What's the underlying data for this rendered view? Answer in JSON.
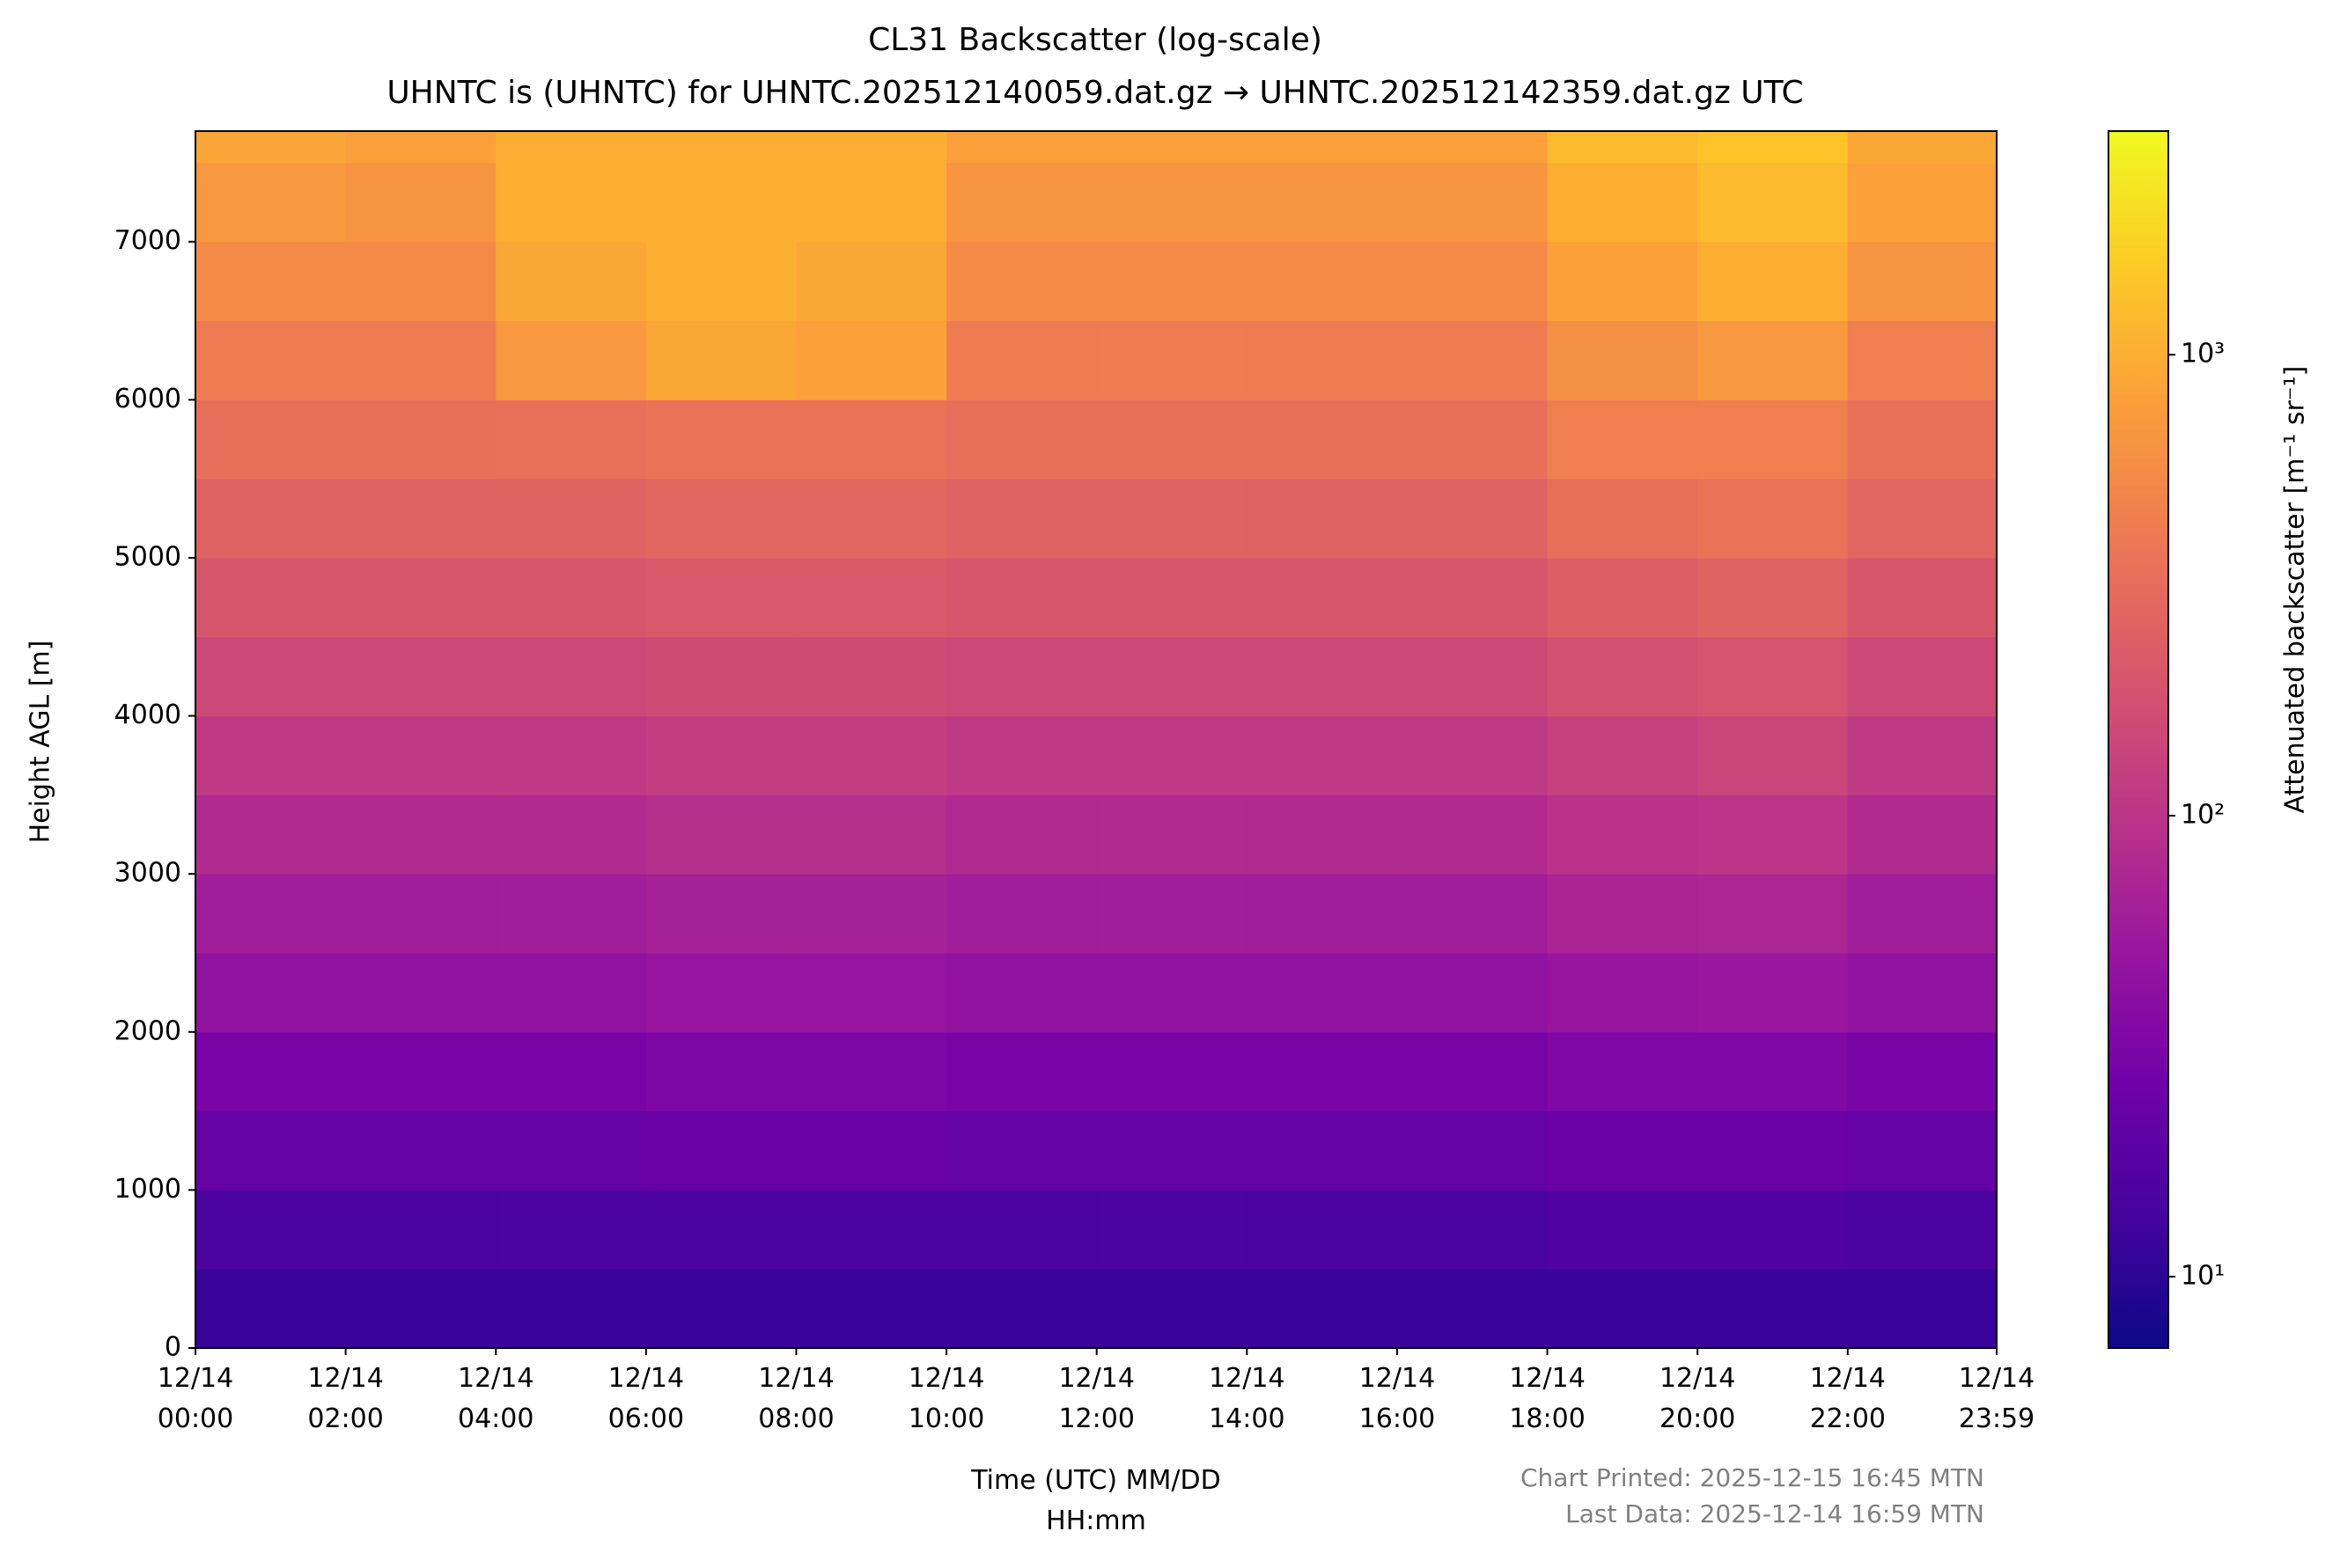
{
  "chart_data": {
    "type": "heatmap",
    "title": "CL31 Backscatter (log-scale)",
    "subtitle": "UHNTC is (UHNTC) for UHNTC.202512140059.dat.gz → UHNTC.202512142359.dat.gz UTC",
    "x_label": "Time (UTC) MM/DD\nHH:mm",
    "y_label": "Height AGL [m]",
    "colorbar_label": "Attenuated backscatter [m⁻¹ sr⁻¹]",
    "colormap": "plasma",
    "footnotes": [
      "Chart Printed: 2025-12-15 16:45 MTN",
      "Last Data: 2025-12-14 16:59 MTN"
    ],
    "xlim": [
      0,
      23.9833
    ],
    "xticks": [
      {
        "value": 0,
        "label": "12/14\n00:00"
      },
      {
        "value": 2,
        "label": "12/14\n02:00"
      },
      {
        "value": 4,
        "label": "12/14\n04:00"
      },
      {
        "value": 6,
        "label": "12/14\n06:00"
      },
      {
        "value": 8,
        "label": "12/14\n08:00"
      },
      {
        "value": 10,
        "label": "12/14\n10:00"
      },
      {
        "value": 12,
        "label": "12/14\n12:00"
      },
      {
        "value": 14,
        "label": "12/14\n14:00"
      },
      {
        "value": 16,
        "label": "12/14\n16:00"
      },
      {
        "value": 18,
        "label": "12/14\n18:00"
      },
      {
        "value": 20,
        "label": "12/14\n20:00"
      },
      {
        "value": 22,
        "label": "12/14\n22:00"
      },
      {
        "value": 23.9833,
        "label": "12/14\n23:59"
      }
    ],
    "ylim": [
      0,
      7700
    ],
    "yticks": [
      0,
      1000,
      2000,
      3000,
      4000,
      5000,
      6000,
      7000
    ],
    "clim": [
      7,
      3055
    ],
    "cticks": [
      {
        "value": 10,
        "label": "10¹"
      },
      {
        "value": 100,
        "label": "10²"
      },
      {
        "value": 1000,
        "label": "10³"
      }
    ],
    "log_color": true,
    "x_edges": [
      0,
      2,
      4,
      6,
      8,
      10,
      12,
      14,
      16,
      18,
      20,
      22,
      23.9833
    ],
    "y_edges": [
      0,
      500,
      1000,
      1500,
      2000,
      2500,
      3000,
      3500,
      4000,
      4500,
      5000,
      5500,
      6000,
      6500,
      7000,
      7500,
      7700
    ],
    "z": [
      [
        12,
        12,
        12,
        12,
        12,
        12,
        12,
        12,
        12,
        12,
        12,
        12
      ],
      [
        15,
        15,
        15,
        15,
        15,
        15,
        15,
        15,
        15,
        16,
        16,
        15
      ],
      [
        22,
        22,
        22,
        23,
        23,
        22,
        22,
        22,
        22,
        24,
        24,
        22
      ],
      [
        30,
        30,
        30,
        32,
        32,
        30,
        30,
        30,
        30,
        34,
        34,
        30
      ],
      [
        45,
        45,
        45,
        48,
        48,
        45,
        45,
        45,
        45,
        50,
        52,
        45
      ],
      [
        60,
        60,
        60,
        65,
        65,
        60,
        60,
        60,
        60,
        70,
        72,
        60
      ],
      [
        80,
        80,
        80,
        88,
        88,
        80,
        80,
        80,
        80,
        95,
        100,
        80
      ],
      [
        110,
        110,
        110,
        120,
        120,
        110,
        110,
        110,
        110,
        130,
        140,
        110
      ],
      [
        150,
        150,
        150,
        160,
        160,
        150,
        150,
        150,
        150,
        180,
        190,
        150
      ],
      [
        200,
        200,
        200,
        210,
        210,
        200,
        200,
        200,
        200,
        240,
        260,
        200
      ],
      [
        260,
        260,
        260,
        280,
        280,
        260,
        260,
        260,
        260,
        330,
        360,
        270
      ],
      [
        330,
        330,
        340,
        360,
        360,
        330,
        330,
        330,
        330,
        450,
        450,
        340
      ],
      [
        420,
        420,
        700,
        900,
        800,
        420,
        420,
        420,
        420,
        600,
        700,
        450
      ],
      [
        550,
        550,
        900,
        1000,
        900,
        550,
        550,
        550,
        550,
        800,
        1000,
        650
      ],
      [
        700,
        650,
        1000,
        1000,
        1000,
        650,
        650,
        650,
        650,
        1000,
        1200,
        800
      ],
      [
        850,
        800,
        1000,
        1000,
        1000,
        800,
        800,
        800,
        800,
        1200,
        1400,
        900
      ]
    ]
  }
}
